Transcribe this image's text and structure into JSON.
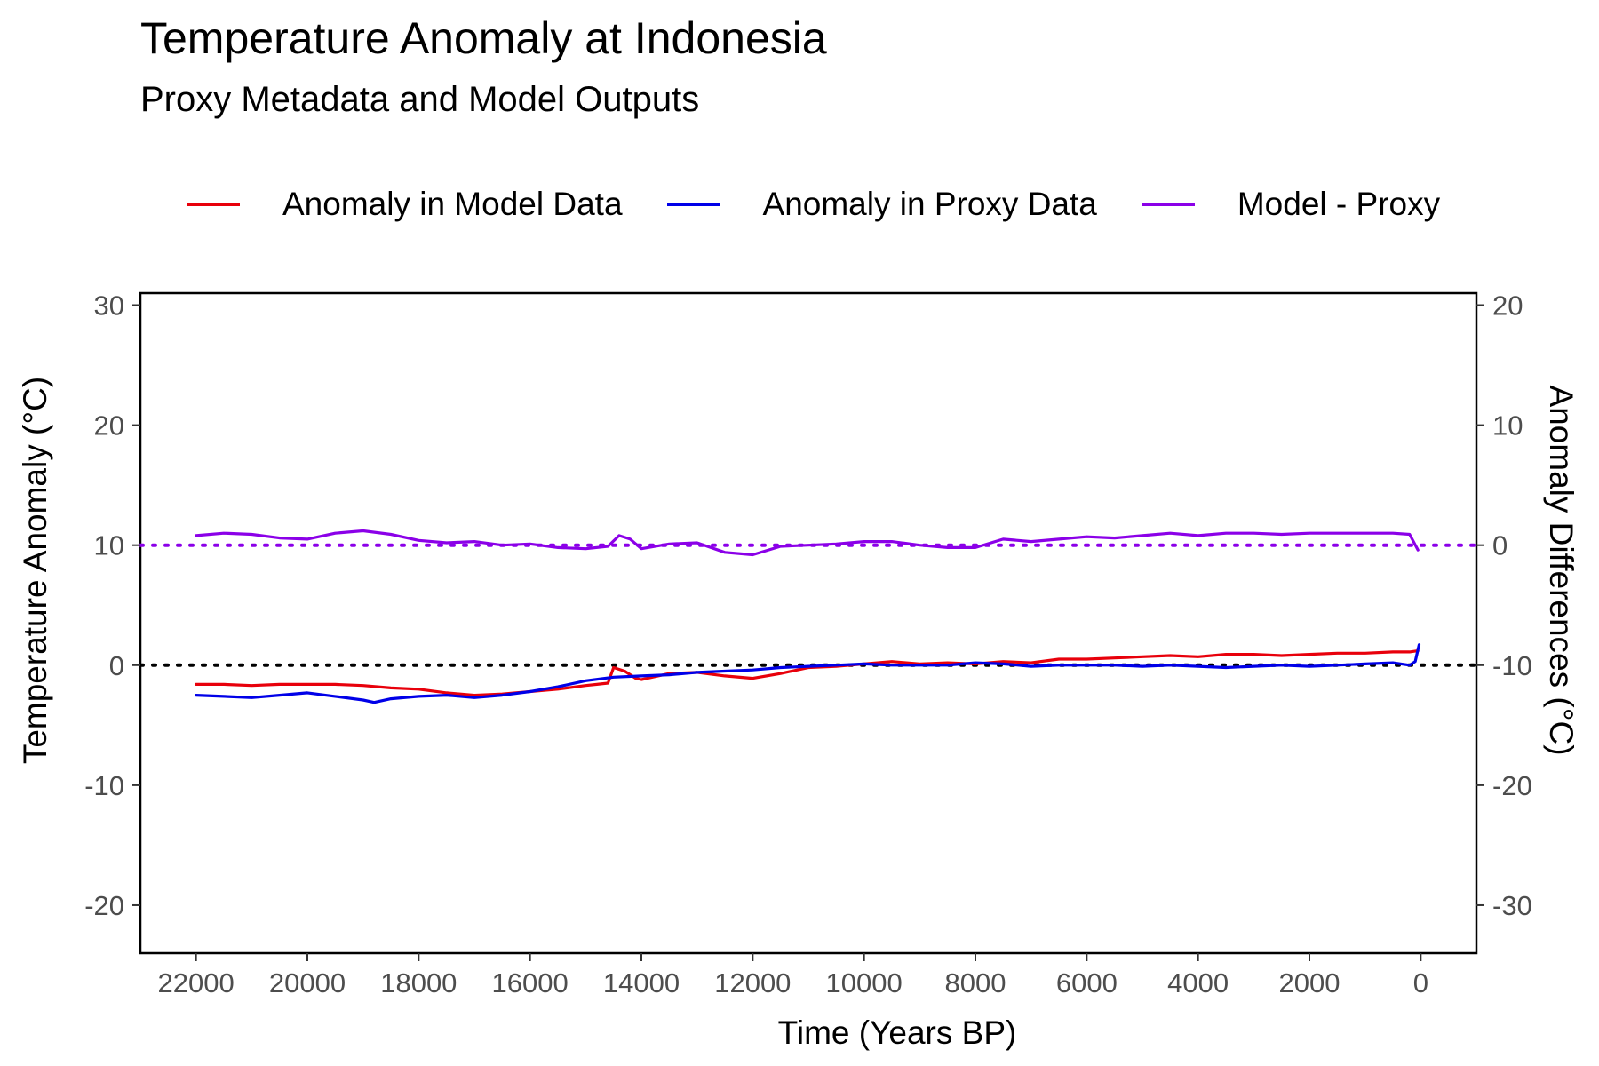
{
  "chart_data": {
    "type": "line",
    "title": "Temperature Anomaly at Indonesia",
    "subtitle": "Proxy Metadata and Model Outputs",
    "xlabel": "Time (Years BP)",
    "ylabel": "Temperature Anomaly (°C)",
    "y2label": "Anomaly Differences (°C)",
    "xlim": [
      23000,
      -1000
    ],
    "x_reversed": true,
    "ylim": [
      -24,
      31
    ],
    "y2lim": [
      -34,
      21
    ],
    "x_ticks": [
      22000,
      20000,
      18000,
      16000,
      14000,
      12000,
      10000,
      8000,
      6000,
      4000,
      2000,
      0
    ],
    "y_ticks": [
      -20,
      -10,
      0,
      10,
      20,
      30
    ],
    "y2_ticks": [
      -30,
      -20,
      -10,
      0,
      10,
      20
    ],
    "grid": false,
    "legend_position": "top",
    "reference_lines": [
      {
        "axis": "y",
        "value": 0,
        "color": "#000000",
        "style": "dotted"
      },
      {
        "axis": "y2",
        "value": 0,
        "color": "#8B00E8",
        "style": "dotted"
      }
    ],
    "series": [
      {
        "name": "Anomaly in Model Data",
        "color": "#E8000B",
        "axis": "y",
        "x": [
          22000,
          21500,
          21000,
          20500,
          20000,
          19500,
          19000,
          18500,
          18000,
          17500,
          17000,
          16500,
          16000,
          15500,
          15000,
          14800,
          14600,
          14500,
          14300,
          14100,
          14000,
          13500,
          13000,
          12500,
          12000,
          11500,
          11000,
          10500,
          10000,
          9500,
          9000,
          8500,
          8000,
          7500,
          7000,
          6500,
          6000,
          5500,
          5000,
          4500,
          4000,
          3500,
          3000,
          2500,
          2000,
          1500,
          1000,
          500,
          200,
          50
        ],
        "values": [
          -1.6,
          -1.6,
          -1.7,
          -1.6,
          -1.6,
          -1.6,
          -1.7,
          -1.9,
          -2.0,
          -2.3,
          -2.5,
          -2.4,
          -2.2,
          -2.0,
          -1.7,
          -1.6,
          -1.5,
          -0.2,
          -0.5,
          -1.1,
          -1.2,
          -0.7,
          -0.6,
          -0.9,
          -1.1,
          -0.7,
          -0.2,
          -0.1,
          0.1,
          0.3,
          0.1,
          0.2,
          0.1,
          0.3,
          0.2,
          0.5,
          0.5,
          0.6,
          0.7,
          0.8,
          0.7,
          0.9,
          0.9,
          0.8,
          0.9,
          1.0,
          1.0,
          1.1,
          1.1,
          1.2
        ]
      },
      {
        "name": "Anomaly in Proxy Data",
        "color": "#0000E8",
        "axis": "y",
        "x": [
          22000,
          21500,
          21000,
          20500,
          20000,
          19500,
          19000,
          18800,
          18500,
          18000,
          17500,
          17000,
          16500,
          16000,
          15500,
          15000,
          14500,
          14000,
          13500,
          13000,
          12500,
          12000,
          11500,
          11000,
          10500,
          10000,
          9500,
          9000,
          8500,
          8000,
          7500,
          7000,
          6500,
          6000,
          5500,
          5000,
          4500,
          4000,
          3500,
          3000,
          2500,
          2000,
          1500,
          1000,
          500,
          200,
          100,
          30
        ],
        "values": [
          -2.5,
          -2.6,
          -2.7,
          -2.5,
          -2.3,
          -2.6,
          -2.9,
          -3.1,
          -2.8,
          -2.6,
          -2.5,
          -2.7,
          -2.5,
          -2.2,
          -1.8,
          -1.3,
          -1.0,
          -0.9,
          -0.8,
          -0.6,
          -0.5,
          -0.4,
          -0.2,
          -0.1,
          0.0,
          0.1,
          0.0,
          0.0,
          0.0,
          0.2,
          0.1,
          -0.1,
          0.0,
          0.0,
          0.0,
          -0.1,
          0.0,
          -0.1,
          -0.2,
          -0.1,
          0.0,
          -0.1,
          0.0,
          0.1,
          0.2,
          0.0,
          0.3,
          1.7
        ]
      },
      {
        "name": "Model - Proxy",
        "color": "#8B00E8",
        "axis": "y2",
        "x": [
          22000,
          21500,
          21000,
          20500,
          20000,
          19500,
          19000,
          18500,
          18000,
          17500,
          17000,
          16500,
          16000,
          15500,
          15000,
          14600,
          14400,
          14200,
          14000,
          13500,
          13000,
          12500,
          12000,
          11500,
          11000,
          10500,
          10000,
          9500,
          9000,
          8500,
          8000,
          7500,
          7000,
          6500,
          6000,
          5500,
          5000,
          4500,
          4000,
          3500,
          3000,
          2500,
          2000,
          1500,
          1000,
          500,
          200,
          50
        ],
        "values": [
          0.8,
          1.0,
          0.9,
          0.6,
          0.5,
          1.0,
          1.2,
          0.9,
          0.4,
          0.2,
          0.3,
          0.0,
          0.1,
          -0.2,
          -0.3,
          -0.1,
          0.8,
          0.5,
          -0.3,
          0.1,
          0.2,
          -0.6,
          -0.8,
          -0.1,
          0.0,
          0.1,
          0.3,
          0.3,
          0.0,
          -0.2,
          -0.2,
          0.5,
          0.3,
          0.5,
          0.7,
          0.6,
          0.8,
          1.0,
          0.8,
          1.0,
          1.0,
          0.9,
          1.0,
          1.0,
          1.0,
          1.0,
          0.9,
          -0.4
        ]
      }
    ]
  }
}
